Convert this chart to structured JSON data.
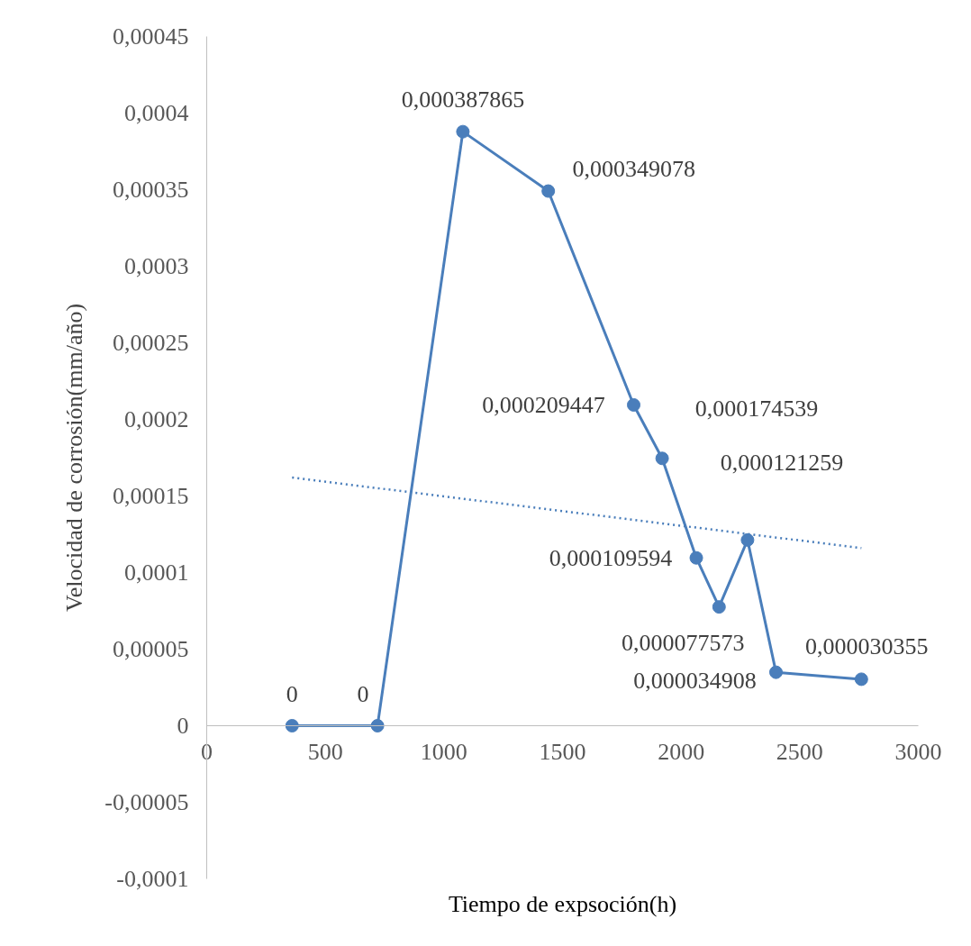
{
  "chart_data": {
    "type": "line",
    "xlabel": "Tiempo de expsoción(h)",
    "ylabel": "Velocidad de corrosión(mm/año)",
    "x": [
      360,
      720,
      1080,
      1440,
      1800,
      1920,
      2064,
      2160,
      2280,
      2400,
      2760
    ],
    "series": [
      {
        "color": "#4a7ebb",
        "marker": "circle",
        "values": [
          0,
          0,
          0.000387865,
          0.000349078,
          0.000209447,
          0.000174539,
          0.000109594,
          7.7573e-05,
          0.000121259,
          3.4908e-05,
          3.0355e-05
        ],
        "value_labels": [
          "0",
          "0",
          "0,000387865",
          "0,000349078",
          "0,000209447",
          "0,000174539",
          "0,000109594",
          "0,000077573",
          "0,000121259",
          "0,000034908",
          "0,000030355"
        ]
      },
      {
        "type": "line",
        "color": "#4a7ebb",
        "marker": "none",
        "line_style": "dotted",
        "x": [
          360,
          2760
        ],
        "values": [
          0.000162,
          0.000116
        ]
      }
    ],
    "xlim": [
      0,
      3000
    ],
    "xticks": [
      0,
      500,
      1000,
      1500,
      2000,
      2500,
      3000
    ],
    "ylim": [
      -0.0001,
      0.00045
    ],
    "yticks": [
      {
        "value": -0.0001,
        "label": "-0,0001"
      },
      {
        "value": -5e-05,
        "label": "-0,00005"
      },
      {
        "value": 0,
        "label": "0"
      },
      {
        "value": 5e-05,
        "label": "0,00005"
      },
      {
        "value": 0.0001,
        "label": "0,0001"
      },
      {
        "value": 0.00015,
        "label": "0,00015"
      },
      {
        "value": 0.0002,
        "label": "0,0002"
      },
      {
        "value": 0.00025,
        "label": "0,00025"
      },
      {
        "value": 0.0003,
        "label": "0,0003"
      },
      {
        "value": 0.00035,
        "label": "0,00035"
      },
      {
        "value": 0.0004,
        "label": "0,0004"
      },
      {
        "value": 0.00045,
        "label": "0,00045"
      }
    ],
    "grid": false
  }
}
